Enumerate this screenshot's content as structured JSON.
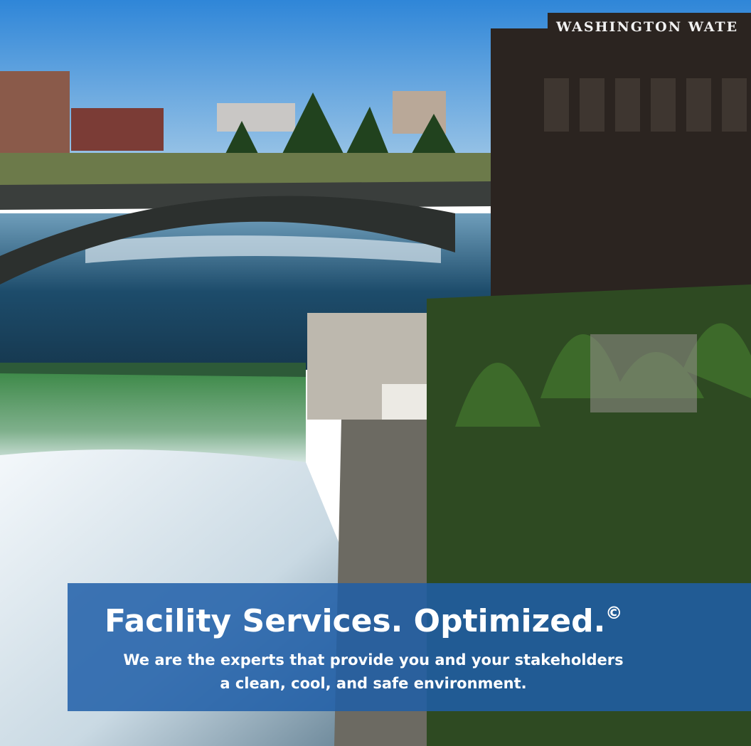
{
  "sign": "WASHINGTON WATE",
  "banner": {
    "title": "Facility Services. Optimized.",
    "mark": "©",
    "subtitle": [
      "We are the experts that provide you and your stakeholders",
      "a clean, cool, and safe environment."
    ]
  }
}
